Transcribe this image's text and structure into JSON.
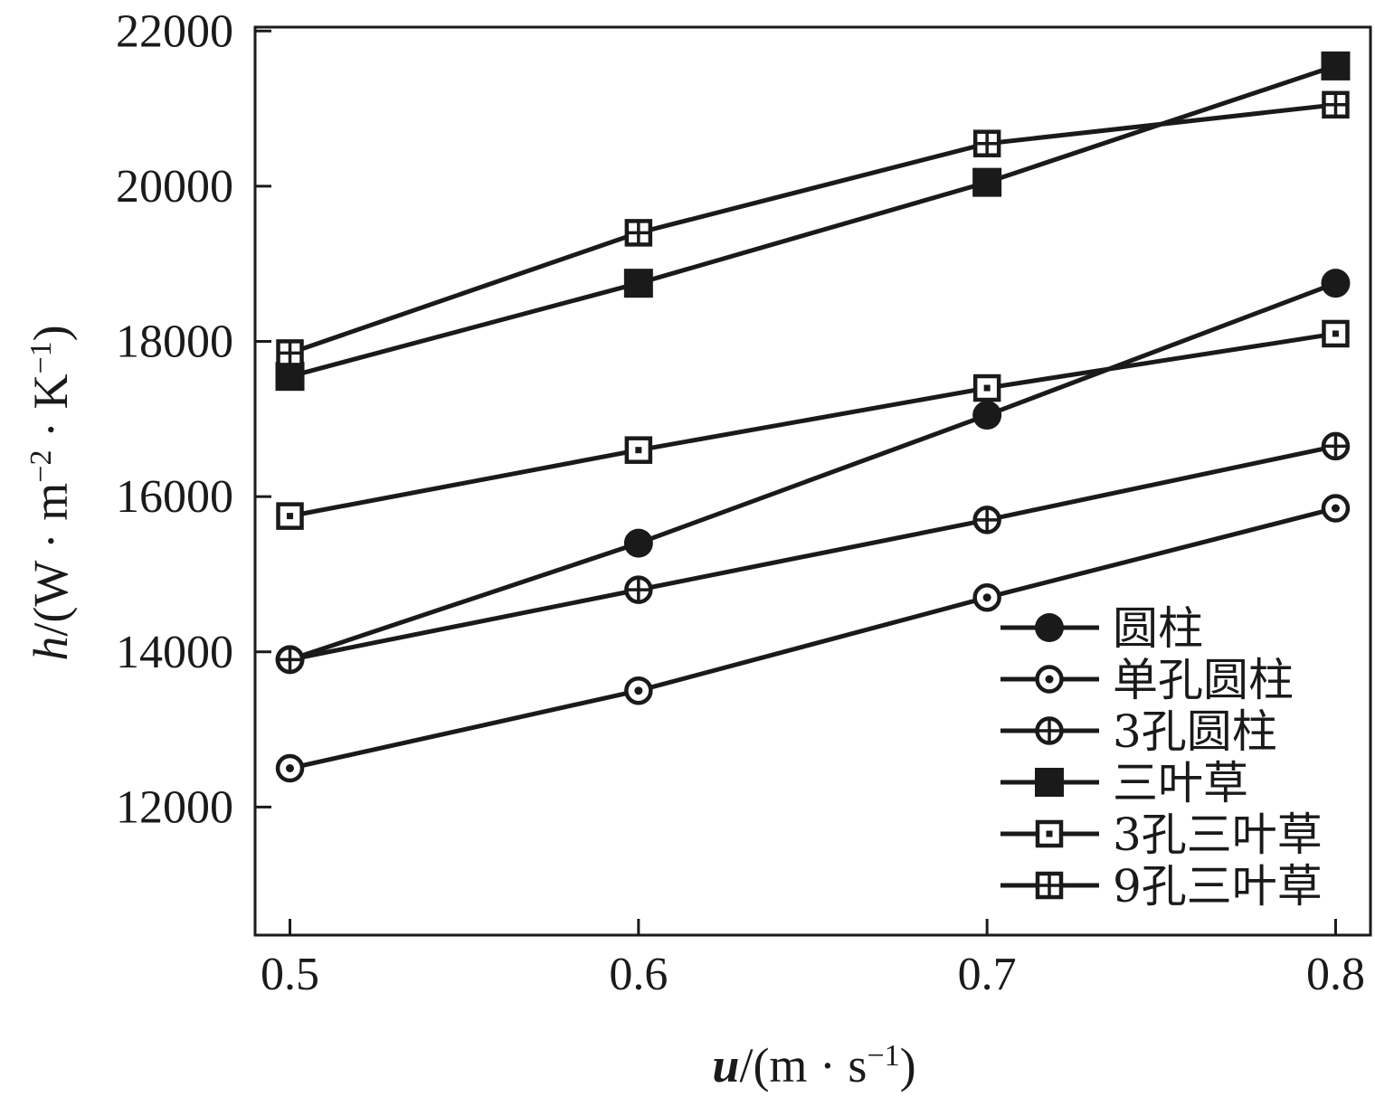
{
  "chart_data": {
    "type": "line",
    "x": [
      0.5,
      0.6,
      0.7,
      0.8
    ],
    "x_tick_labels": [
      "0.5",
      "0.6",
      "0.7",
      "0.8"
    ],
    "y_tick_labels": [
      "12000",
      "14000",
      "16000",
      "18000",
      "20000",
      "22000"
    ],
    "y_ticks": [
      12000,
      14000,
      16000,
      18000,
      20000,
      22000
    ],
    "xlim": [
      0.49,
      0.81
    ],
    "ylim": [
      10350,
      22050
    ],
    "xlabel": {
      "var": "u",
      "unit_open": "/(m · s",
      "unit_exp": "−1",
      "unit_close": ")"
    },
    "ylabel": {
      "var": "h",
      "unit_open": "/(W · m",
      "unit_exp1": "−2",
      "unit_mid": " · K",
      "unit_exp2": "−1",
      "unit_close": ")"
    },
    "grid": false,
    "legend_position": "bottom-right",
    "line_color": "#1a1a1a",
    "series": [
      {
        "name": "圆柱",
        "marker": "filled-circle",
        "values": [
          13900,
          15400,
          17050,
          18750
        ]
      },
      {
        "name": "单孔圆柱",
        "marker": "dot-circle",
        "values": [
          12500,
          13500,
          14700,
          15850
        ]
      },
      {
        "name": "3孔圆柱",
        "marker": "cross-circle",
        "values": [
          13900,
          14800,
          15700,
          16650
        ]
      },
      {
        "name": "三叶草",
        "marker": "filled-square",
        "values": [
          17550,
          18750,
          20050,
          21550
        ]
      },
      {
        "name": "3孔三叶草",
        "marker": "dot-square",
        "values": [
          15750,
          16600,
          17400,
          18100
        ]
      },
      {
        "name": "9孔三叶草",
        "marker": "cross-square",
        "values": [
          17850,
          19400,
          20550,
          21050
        ]
      }
    ]
  }
}
